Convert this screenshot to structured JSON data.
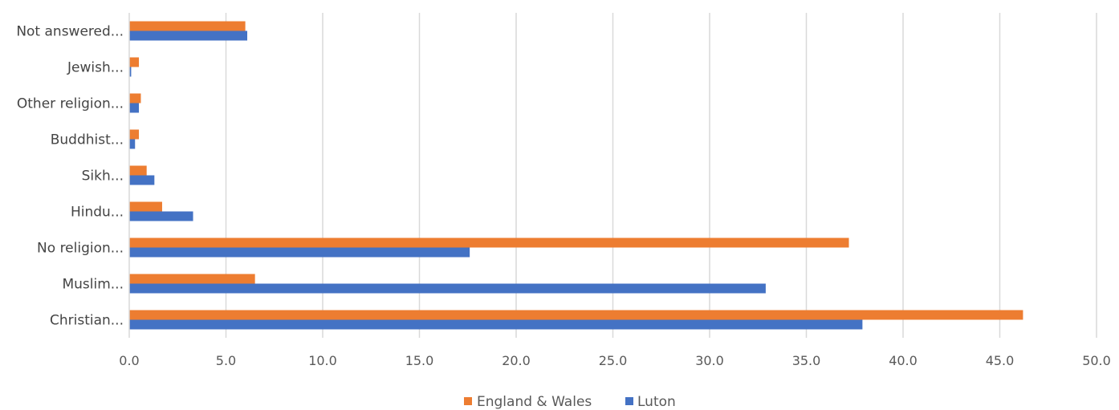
{
  "chart_data": {
    "type": "bar",
    "orientation": "horizontal",
    "categories": [
      "Christian...",
      "Muslim...",
      "No religion...",
      "Hindu...",
      "Sikh...",
      "Buddhist...",
      "Other religion...",
      "Jewish...",
      "Not answered..."
    ],
    "series": [
      {
        "name": "England & Wales",
        "color": "#ED7D31",
        "values": [
          46.2,
          6.5,
          37.2,
          1.7,
          0.9,
          0.5,
          0.6,
          0.5,
          6.0
        ]
      },
      {
        "name": "Luton",
        "color": "#4472C4",
        "values": [
          37.9,
          32.9,
          17.6,
          3.3,
          1.3,
          0.3,
          0.5,
          0.1,
          6.1
        ]
      }
    ],
    "xlim": [
      0,
      50
    ],
    "x_ticks": [
      "0.0",
      "5.0",
      "10.0",
      "15.0",
      "20.0",
      "25.0",
      "30.0",
      "35.0",
      "40.0",
      "45.0",
      "50.0"
    ],
    "grid": true,
    "legend_position": "bottom",
    "title": "",
    "xlabel": "",
    "ylabel": ""
  }
}
